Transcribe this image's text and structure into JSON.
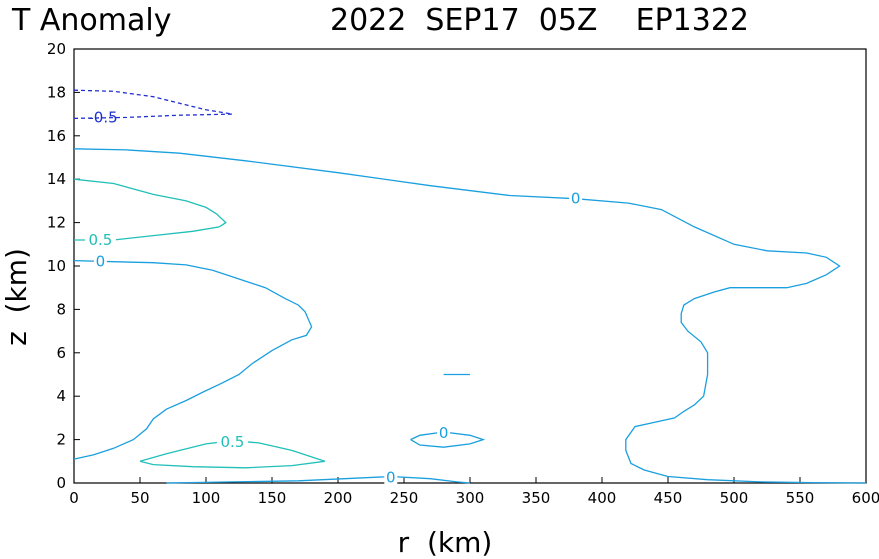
{
  "chart_data": {
    "type": "contour",
    "title_left": "T Anomaly",
    "title_right": "2022  SEP17  05Z    EP1322",
    "xlabel": "r  (km)",
    "ylabel": "z  (km)",
    "xlim": [
      0,
      600
    ],
    "ylim": [
      0,
      20
    ],
    "xticks": [
      0,
      50,
      100,
      150,
      200,
      250,
      300,
      350,
      400,
      450,
      500,
      550,
      600
    ],
    "yticks": [
      0,
      2,
      4,
      6,
      8,
      10,
      12,
      14,
      16,
      18,
      20
    ],
    "grid": false,
    "colors": {
      "zero": "#1a9fdf",
      "positive": "#20c0b8",
      "negative": "#2030d0"
    },
    "contours": [
      {
        "level": 0,
        "label": "0",
        "label_at": [
          380,
          13.1
        ],
        "dashed": false,
        "points": [
          [
            0,
            15.4
          ],
          [
            40,
            15.35
          ],
          [
            80,
            15.2
          ],
          [
            130,
            14.85
          ],
          [
            200,
            14.3
          ],
          [
            270,
            13.7
          ],
          [
            330,
            13.25
          ],
          [
            380,
            13.1
          ],
          [
            420,
            12.9
          ],
          [
            445,
            12.6
          ],
          [
            470,
            11.8
          ],
          [
            500,
            11.0
          ],
          [
            525,
            10.7
          ],
          [
            555,
            10.6
          ],
          [
            570,
            10.4
          ],
          [
            580,
            10.0
          ],
          [
            570,
            9.6
          ],
          [
            555,
            9.2
          ],
          [
            540,
            9.0
          ],
          [
            515,
            9.0
          ],
          [
            497,
            9.0
          ],
          [
            485,
            8.8
          ],
          [
            470,
            8.5
          ],
          [
            462,
            8.2
          ],
          [
            460,
            7.8
          ],
          [
            460,
            7.4
          ],
          [
            465,
            7.0
          ],
          [
            475,
            6.5
          ],
          [
            480,
            6.0
          ],
          [
            480,
            5.0
          ],
          [
            477,
            4.0
          ],
          [
            470,
            3.6
          ],
          [
            462,
            3.3
          ],
          [
            455,
            3.0
          ],
          [
            440,
            2.8
          ],
          [
            425,
            2.6
          ],
          [
            418,
            2.0
          ],
          [
            418,
            1.5
          ],
          [
            422,
            0.9
          ],
          [
            432,
            0.6
          ],
          [
            450,
            0.3
          ],
          [
            480,
            0.15
          ],
          [
            520,
            0.05
          ],
          [
            560,
            0.02
          ],
          [
            600,
            0
          ]
        ]
      },
      {
        "level": 0,
        "label": "0",
        "label_at": [
          20,
          10.2
        ],
        "dashed": false,
        "points": [
          [
            0,
            10.25
          ],
          [
            30,
            10.2
          ],
          [
            60,
            10.15
          ],
          [
            85,
            10.05
          ],
          [
            105,
            9.8
          ],
          [
            125,
            9.4
          ],
          [
            145,
            9.0
          ],
          [
            160,
            8.5
          ],
          [
            170,
            8.2
          ],
          [
            175,
            7.9
          ],
          [
            180,
            7.2
          ],
          [
            176,
            6.8
          ],
          [
            165,
            6.6
          ],
          [
            150,
            6.1
          ],
          [
            135,
            5.5
          ],
          [
            125,
            5.0
          ],
          [
            112,
            4.6
          ],
          [
            98,
            4.2
          ],
          [
            85,
            3.8
          ],
          [
            70,
            3.4
          ],
          [
            60,
            2.95
          ],
          [
            55,
            2.5
          ],
          [
            45,
            2.0
          ],
          [
            30,
            1.6
          ],
          [
            15,
            1.3
          ],
          [
            0,
            1.1
          ]
        ]
      },
      {
        "level": 0,
        "label": "0",
        "label_at": [
          240,
          0.25
        ],
        "dashed": false,
        "points": [
          [
            70,
            0
          ],
          [
            120,
            0.05
          ],
          [
            170,
            0.1
          ],
          [
            205,
            0.2
          ],
          [
            240,
            0.3
          ],
          [
            270,
            0.2
          ],
          [
            290,
            0.05
          ],
          [
            300,
            0
          ]
        ]
      },
      {
        "level": 0,
        "label": "0",
        "label_at": [
          280,
          2.3
        ],
        "dashed": false,
        "points": [
          [
            255,
            2.0
          ],
          [
            262,
            2.2
          ],
          [
            280,
            2.35
          ],
          [
            300,
            2.2
          ],
          [
            310,
            2.0
          ],
          [
            300,
            1.8
          ],
          [
            280,
            1.65
          ],
          [
            262,
            1.75
          ],
          [
            255,
            2.0
          ]
        ]
      },
      {
        "level": 0,
        "label": "",
        "label_at": null,
        "dashed": false,
        "points": [
          [
            280,
            5.0
          ],
          [
            300,
            5.0
          ]
        ]
      },
      {
        "level": 0.5,
        "label": "0.5",
        "label_at": [
          20,
          11.2
        ],
        "dashed": false,
        "points": [
          [
            0,
            14.0
          ],
          [
            30,
            13.8
          ],
          [
            60,
            13.3
          ],
          [
            85,
            13.0
          ],
          [
            100,
            12.7
          ],
          [
            108,
            12.4
          ],
          [
            115,
            12.0
          ],
          [
            110,
            11.8
          ],
          [
            90,
            11.6
          ],
          [
            60,
            11.4
          ],
          [
            30,
            11.2
          ],
          [
            0,
            11.2
          ]
        ]
      },
      {
        "level": 0.5,
        "label": "0.5",
        "label_at": [
          120,
          1.9
        ],
        "dashed": false,
        "points": [
          [
            50,
            1.0
          ],
          [
            70,
            1.35
          ],
          [
            100,
            1.8
          ],
          [
            120,
            1.95
          ],
          [
            140,
            1.85
          ],
          [
            165,
            1.5
          ],
          [
            190,
            1.0
          ],
          [
            165,
            0.8
          ],
          [
            130,
            0.7
          ],
          [
            90,
            0.75
          ],
          [
            60,
            0.85
          ],
          [
            50,
            1.0
          ]
        ]
      },
      {
        "level": -0.5,
        "label": "-0.5",
        "label_at": [
          22,
          16.85
        ],
        "dashed": true,
        "points": [
          [
            0,
            18.1
          ],
          [
            30,
            18.05
          ],
          [
            60,
            17.8
          ],
          [
            80,
            17.5
          ],
          [
            100,
            17.2
          ],
          [
            120,
            17.0
          ]
        ]
      },
      {
        "level": -0.5,
        "label": "",
        "label_at": null,
        "dashed": true,
        "points": [
          [
            0,
            16.8
          ],
          [
            40,
            16.85
          ],
          [
            80,
            16.95
          ],
          [
            120,
            17.0
          ]
        ]
      }
    ]
  }
}
